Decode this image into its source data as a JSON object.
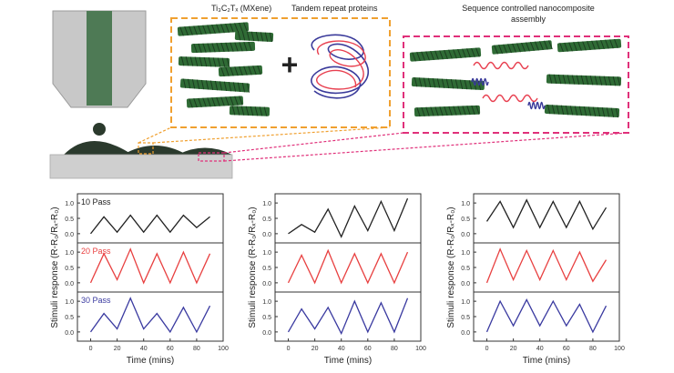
{
  "schematic": {
    "mxene_label": "Ti₃C₂Tₓ (MXene)",
    "protein_label": "Tandem repeat proteins",
    "nano_label_line1": "Sequence controlled nanocomposite",
    "nano_label_line2": "assembly",
    "plus_sign": "+",
    "colors": {
      "mxene": "#2f6b35",
      "mxene_dark": "#1c3d20",
      "orange_box": "#f0a030",
      "pink_box": "#e0307a",
      "protein_red": "#e84050",
      "protein_blue": "#3a3a9a",
      "nozzle": "#c8c8c8",
      "nozzle_stripe": "#4e7a55",
      "substrate": "#cfcfcf",
      "ink": "#2b3a2d"
    }
  },
  "chart_data": [
    {
      "type": "line",
      "panel": "left",
      "xlabel": "Time (mins)",
      "ylabel": "Stimuli response (R-R₀/Rₓ-R₀)",
      "xlim": [
        -10,
        100
      ],
      "x_ticks": [
        "0",
        "20",
        "40",
        "60",
        "80",
        "100"
      ],
      "y_ticks": [
        "0.0",
        "0.5",
        "1.0"
      ],
      "series": [
        {
          "name": "10 Pass",
          "color": "#222222",
          "x": [
            0,
            10,
            20,
            30,
            40,
            50,
            60,
            70,
            80,
            90
          ],
          "y": [
            0.0,
            0.55,
            0.05,
            0.6,
            0.05,
            0.6,
            0.05,
            0.6,
            0.2,
            0.55
          ]
        },
        {
          "name": "20 Pass",
          "color": "#e84040",
          "x": [
            0,
            10,
            20,
            30,
            40,
            50,
            60,
            70,
            80,
            90
          ],
          "y": [
            0.0,
            0.95,
            0.1,
            1.1,
            0.0,
            0.95,
            0.0,
            1.0,
            0.0,
            0.95
          ]
        },
        {
          "name": "30 Pass",
          "color": "#3a3aa0",
          "x": [
            0,
            10,
            20,
            30,
            40,
            50,
            60,
            70,
            80,
            90
          ],
          "y": [
            0.0,
            0.6,
            0.1,
            1.1,
            0.1,
            0.6,
            0.0,
            0.8,
            0.0,
            0.85
          ]
        }
      ]
    },
    {
      "type": "line",
      "panel": "middle",
      "xlabel": "Time (mins)",
      "ylabel": "Stimuli response (R-R₀/Rₓ-R₀)",
      "xlim": [
        -10,
        100
      ],
      "x_ticks": [
        "0",
        "20",
        "40",
        "60",
        "80",
        "100"
      ],
      "y_ticks": [
        "0.0",
        "0.5",
        "1.0"
      ],
      "series": [
        {
          "name": "",
          "color": "#222222",
          "x": [
            0,
            10,
            20,
            30,
            40,
            50,
            60,
            70,
            80,
            90
          ],
          "y": [
            0.0,
            0.3,
            0.05,
            0.8,
            -0.1,
            0.9,
            0.1,
            1.05,
            0.1,
            1.15
          ]
        },
        {
          "name": "",
          "color": "#e84040",
          "x": [
            0,
            10,
            20,
            30,
            40,
            50,
            60,
            70,
            80,
            90
          ],
          "y": [
            0.0,
            0.9,
            0.0,
            1.05,
            0.0,
            0.95,
            0.0,
            0.95,
            0.0,
            1.0
          ]
        },
        {
          "name": "",
          "color": "#3a3aa0",
          "x": [
            0,
            10,
            20,
            30,
            40,
            50,
            60,
            70,
            80,
            90
          ],
          "y": [
            0.0,
            0.75,
            0.1,
            0.8,
            -0.05,
            1.0,
            0.0,
            0.95,
            0.0,
            1.1
          ]
        }
      ]
    },
    {
      "type": "line",
      "panel": "right",
      "xlabel": "Time (mins)",
      "ylabel": "Stimuli response (R-R₀/Rₓ-R₀)",
      "xlim": [
        -10,
        100
      ],
      "x_ticks": [
        "0",
        "20",
        "40",
        "60",
        "80",
        "100"
      ],
      "y_ticks": [
        "0.0",
        "0.5",
        "1.0"
      ],
      "series": [
        {
          "name": "",
          "color": "#222222",
          "x": [
            0,
            10,
            20,
            30,
            40,
            50,
            60,
            70,
            80,
            90
          ],
          "y": [
            0.4,
            1.05,
            0.2,
            1.1,
            0.2,
            1.05,
            0.2,
            1.05,
            0.15,
            0.85
          ]
        },
        {
          "name": "",
          "color": "#e84040",
          "x": [
            0,
            10,
            20,
            30,
            40,
            50,
            60,
            70,
            80,
            90
          ],
          "y": [
            0.0,
            1.1,
            0.1,
            1.05,
            0.1,
            1.05,
            0.1,
            1.0,
            0.05,
            0.75
          ]
        },
        {
          "name": "",
          "color": "#3a3aa0",
          "x": [
            0,
            10,
            20,
            30,
            40,
            50,
            60,
            70,
            80,
            90
          ],
          "y": [
            0.0,
            1.0,
            0.2,
            1.05,
            0.2,
            1.0,
            0.2,
            0.9,
            0.0,
            0.85
          ]
        }
      ]
    }
  ]
}
